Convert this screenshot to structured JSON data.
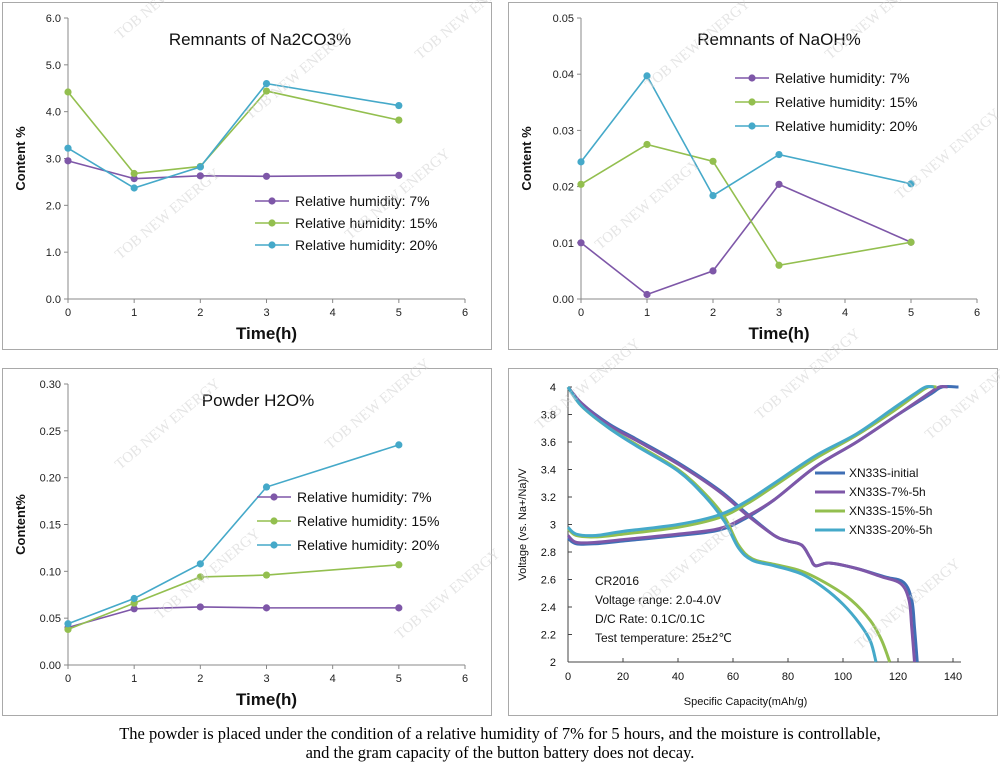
{
  "chart_data": [
    {
      "type": "line",
      "title": "Remnants of Na2CO3%",
      "xlabel": "Time(h)",
      "ylabel": "Content %",
      "xlim": [
        0,
        6
      ],
      "ylim": [
        0,
        6
      ],
      "xticks": [
        "0",
        "1",
        "2",
        "3",
        "4",
        "5",
        "6"
      ],
      "yticks": [
        "0.0",
        "1.0",
        "2.0",
        "3.0",
        "4.0",
        "5.0",
        "6.0"
      ],
      "legend_position": "lower-right",
      "x": [
        0,
        1,
        2,
        3,
        5
      ],
      "series": [
        {
          "name": "Relative humidity:  7%",
          "color": "#7e57a8",
          "values": [
            2.95,
            2.57,
            2.63,
            2.62,
            2.64
          ]
        },
        {
          "name": "Relative humidity:  15%",
          "color": "#93bf4f",
          "values": [
            4.42,
            2.68,
            2.83,
            4.44,
            3.82
          ]
        },
        {
          "name": "Relative humidity:  20%",
          "color": "#45a9c9",
          "values": [
            3.22,
            2.37,
            2.82,
            4.6,
            4.13
          ]
        }
      ]
    },
    {
      "type": "line",
      "title": "Remnants of NaOH%",
      "xlabel": "Time(h)",
      "ylabel": "Content %",
      "xlim": [
        0,
        6
      ],
      "ylim": [
        0,
        0.05
      ],
      "xticks": [
        "0",
        "1",
        "2",
        "3",
        "4",
        "5",
        "6"
      ],
      "yticks": [
        "0.00",
        "0.01",
        "0.02",
        "0.03",
        "0.04",
        "0.05"
      ],
      "legend_position": "top-right",
      "x": [
        0,
        1,
        2,
        3,
        5
      ],
      "series": [
        {
          "name": "Relative humidity:  7%",
          "color": "#7e57a8",
          "values": [
            0.01,
            0.0008,
            0.005,
            0.0204,
            0.0101
          ]
        },
        {
          "name": "Relative humidity:  15%",
          "color": "#93bf4f",
          "values": [
            0.0204,
            0.0275,
            0.0245,
            0.006,
            0.0101
          ]
        },
        {
          "name": "Relative humidity:  20%",
          "color": "#45a9c9",
          "values": [
            0.0244,
            0.0397,
            0.0184,
            0.0257,
            0.0205
          ]
        }
      ]
    },
    {
      "type": "line",
      "title": "Powder H2O%",
      "xlabel": "Time(h)",
      "ylabel": "Content%",
      "xlim": [
        0,
        6
      ],
      "ylim": [
        0,
        0.3
      ],
      "xticks": [
        "0",
        "1",
        "2",
        "3",
        "4",
        "5",
        "6"
      ],
      "yticks": [
        "0.00",
        "0.05",
        "0.10",
        "0.15",
        "0.20",
        "0.25",
        "0.30"
      ],
      "legend_position": "center-right",
      "x": [
        0,
        1,
        2,
        3,
        5
      ],
      "series": [
        {
          "name": "Relative humidity:  7%",
          "color": "#7e57a8",
          "values": [
            0.04,
            0.06,
            0.062,
            0.061,
            0.061
          ]
        },
        {
          "name": "Relative humidity:  15%",
          "color": "#93bf4f",
          "values": [
            0.038,
            0.066,
            0.094,
            0.096,
            0.107
          ]
        },
        {
          "name": "Relative humidity:  20%",
          "color": "#45a9c9",
          "values": [
            0.044,
            0.071,
            0.108,
            0.19,
            0.235
          ]
        }
      ]
    },
    {
      "type": "line",
      "title": "",
      "xlabel": "Specific Capacity(mAh/g)",
      "ylabel": "Voltage (vs. Na+/Na)/V",
      "xlim": [
        0,
        140
      ],
      "ylim": [
        2,
        4
      ],
      "xticks": [
        "0",
        "20",
        "40",
        "60",
        "80",
        "100",
        "120",
        "140"
      ],
      "yticks": [
        "2",
        "2.2",
        "2.4",
        "2.6",
        "2.8",
        "3",
        "3.2",
        "3.4",
        "3.6",
        "3.8",
        "4"
      ],
      "legend_position": "right",
      "annotations": [
        "CR2016",
        "Voltage  range:  2.0-4.0V",
        "D/C Rate:  0.1C/0.1C",
        "Test temperature:  25±2℃"
      ],
      "series": [
        {
          "name": "XN33S-initial",
          "color": "#3f6fb5",
          "charge": [
            [
              0,
              2.9
            ],
            [
              3,
              2.86
            ],
            [
              10,
              2.86
            ],
            [
              20,
              2.88
            ],
            [
              40,
              2.92
            ],
            [
              55,
              2.96
            ],
            [
              65,
              3.05
            ],
            [
              75,
              3.18
            ],
            [
              90,
              3.42
            ],
            [
              105,
              3.6
            ],
            [
              120,
              3.8
            ],
            [
              132,
              3.95
            ],
            [
              136,
              4.0
            ],
            [
              142,
              4.0
            ]
          ],
          "discharge": [
            [
              0,
              4.0
            ],
            [
              5,
              3.88
            ],
            [
              15,
              3.73
            ],
            [
              25,
              3.62
            ],
            [
              40,
              3.45
            ],
            [
              55,
              3.25
            ],
            [
              65,
              3.08
            ],
            [
              75,
              2.92
            ],
            [
              80,
              2.88
            ],
            [
              85,
              2.85
            ],
            [
              88,
              2.76
            ],
            [
              90,
              2.7
            ],
            [
              95,
              2.72
            ],
            [
              105,
              2.68
            ],
            [
              115,
              2.62
            ],
            [
              122,
              2.58
            ],
            [
              125,
              2.45
            ],
            [
              126,
              2.25
            ],
            [
              127,
              2.0
            ]
          ]
        },
        {
          "name": "XN33S-7%-5h",
          "color": "#7e57a8",
          "charge": [
            [
              0,
              2.92
            ],
            [
              3,
              2.87
            ],
            [
              10,
              2.87
            ],
            [
              20,
              2.89
            ],
            [
              40,
              2.93
            ],
            [
              55,
              2.97
            ],
            [
              65,
              3.06
            ],
            [
              75,
              3.18
            ],
            [
              90,
              3.42
            ],
            [
              105,
              3.6
            ],
            [
              120,
              3.8
            ],
            [
              131,
              3.95
            ],
            [
              135,
              4.0
            ],
            [
              138,
              4.0
            ]
          ],
          "discharge": [
            [
              0,
              4.0
            ],
            [
              5,
              3.88
            ],
            [
              15,
              3.72
            ],
            [
              25,
              3.61
            ],
            [
              40,
              3.44
            ],
            [
              55,
              3.24
            ],
            [
              65,
              3.07
            ],
            [
              75,
              2.92
            ],
            [
              80,
              2.88
            ],
            [
              85,
              2.85
            ],
            [
              88,
              2.76
            ],
            [
              90,
              2.7
            ],
            [
              95,
              2.72
            ],
            [
              105,
              2.68
            ],
            [
              114,
              2.62
            ],
            [
              121,
              2.57
            ],
            [
              124,
              2.45
            ],
            [
              125,
              2.25
            ],
            [
              126,
              2.0
            ]
          ]
        },
        {
          "name": "XN33S-15%-5h",
          "color": "#93bf4f",
          "charge": [
            [
              0,
              2.97
            ],
            [
              3,
              2.92
            ],
            [
              10,
              2.91
            ],
            [
              20,
              2.93
            ],
            [
              40,
              2.98
            ],
            [
              55,
              3.05
            ],
            [
              65,
              3.15
            ],
            [
              75,
              3.28
            ],
            [
              90,
              3.48
            ],
            [
              105,
              3.65
            ],
            [
              118,
              3.82
            ],
            [
              127,
              3.95
            ],
            [
              131,
              4.0
            ],
            [
              134,
              4.0
            ]
          ],
          "discharge": [
            [
              0,
              4.0
            ],
            [
              5,
              3.86
            ],
            [
              15,
              3.7
            ],
            [
              25,
              3.58
            ],
            [
              40,
              3.4
            ],
            [
              50,
              3.22
            ],
            [
              57,
              3.05
            ],
            [
              62,
              2.85
            ],
            [
              67,
              2.75
            ],
            [
              75,
              2.71
            ],
            [
              85,
              2.66
            ],
            [
              95,
              2.56
            ],
            [
              103,
              2.45
            ],
            [
              110,
              2.3
            ],
            [
              114,
              2.16
            ],
            [
              117,
              2.0
            ]
          ]
        },
        {
          "name": "XN33S-20%-5h",
          "color": "#45a9c9",
          "charge": [
            [
              0,
              2.98
            ],
            [
              3,
              2.93
            ],
            [
              10,
              2.92
            ],
            [
              20,
              2.95
            ],
            [
              40,
              3.0
            ],
            [
              55,
              3.07
            ],
            [
              65,
              3.17
            ],
            [
              75,
              3.3
            ],
            [
              90,
              3.5
            ],
            [
              105,
              3.66
            ],
            [
              118,
              3.84
            ],
            [
              126,
              3.95
            ],
            [
              130,
              4.0
            ],
            [
              133,
              4.0
            ]
          ],
          "discharge": [
            [
              0,
              4.0
            ],
            [
              5,
              3.86
            ],
            [
              15,
              3.7
            ],
            [
              25,
              3.57
            ],
            [
              40,
              3.39
            ],
            [
              50,
              3.2
            ],
            [
              57,
              3.02
            ],
            [
              62,
              2.83
            ],
            [
              67,
              2.74
            ],
            [
              75,
              2.7
            ],
            [
              85,
              2.64
            ],
            [
              93,
              2.54
            ],
            [
              100,
              2.42
            ],
            [
              106,
              2.28
            ],
            [
              110,
              2.15
            ],
            [
              112,
              2.0
            ]
          ]
        }
      ]
    }
  ],
  "caption": {
    "line1": "The powder is placed under the condition of a relative humidity of 7% for 5 hours, and the moisture is controllable,",
    "line2": "and the gram capacity of the button battery does not decay."
  },
  "watermark": "TOB NEW ENERGY"
}
